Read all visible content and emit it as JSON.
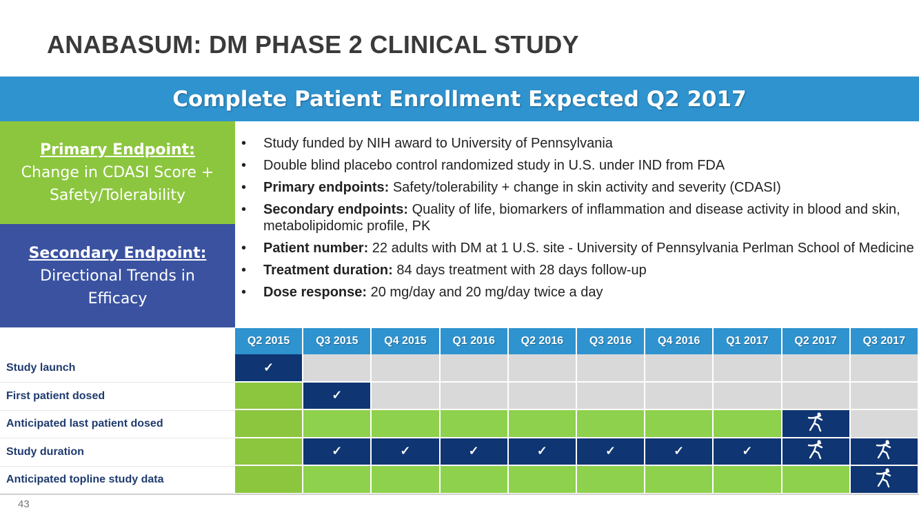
{
  "title": "ANABASUM: DM PHASE 2 CLINICAL STUDY",
  "banner": "Complete Patient Enrollment Expected Q2 2017",
  "primary": {
    "head": "Primary Endpoint:",
    "line1": "Change in CDASI Score +",
    "line2": "Safety/Tolerability"
  },
  "secondary": {
    "head": "Secondary Endpoint:",
    "line1": "Directional Trends in",
    "line2": "Efficacy"
  },
  "bullets": [
    {
      "bold": "",
      "text": "Study funded by NIH award to University of Pennsylvania"
    },
    {
      "bold": "",
      "text": "Double blind placebo control randomized study in U.S. under IND from FDA"
    },
    {
      "bold": "Primary endpoints:",
      "text": " Safety/tolerability + change in skin activity and severity (CDASI)"
    },
    {
      "bold": "Secondary endpoints:",
      "text": " Quality of life, biomarkers of inflammation and disease activity in blood and skin, metabolipidomic profile, PK"
    },
    {
      "bold": "Patient number:",
      "text": " 22 adults with DM at 1 U.S. site - University of Pennsylvania Perlman School of Medicine"
    },
    {
      "bold": "Treatment duration:",
      "text": " 84 days treatment with 28 days follow-up"
    },
    {
      "bold": "Dose response:",
      "text": " 20 mg/day and 20 mg/day twice a day"
    }
  ],
  "timeline": {
    "quarters": [
      "Q2 2015",
      "Q3 2015",
      "Q4 2015",
      "Q1 2016",
      "Q2 2016",
      "Q3 2016",
      "Q4 2016",
      "Q1 2017",
      "Q2 2017",
      "Q3 2017"
    ],
    "rows": [
      {
        "label": "Study launch",
        "cells": [
          "navy-check",
          "gray",
          "gray",
          "gray",
          "gray",
          "gray",
          "gray",
          "gray",
          "gray",
          "gray"
        ]
      },
      {
        "label": "First patient dosed",
        "cells": [
          "lgreen",
          "navy-check",
          "gray",
          "gray",
          "gray",
          "gray",
          "gray",
          "gray",
          "gray",
          "gray"
        ]
      },
      {
        "label": "Anticipated last patient dosed",
        "cells": [
          "lgreen",
          "green",
          "green",
          "green",
          "green",
          "green",
          "green",
          "green",
          "navy-runner",
          "gray"
        ]
      },
      {
        "label": "Study duration",
        "cells": [
          "lgreen",
          "navy-check",
          "navy-check",
          "navy-check",
          "navy-check",
          "navy-check",
          "navy-check",
          "navy-check",
          "navy-runner",
          "navy-runner"
        ]
      },
      {
        "label": "Anticipated topline study data",
        "cells": [
          "lgreen",
          "green",
          "green",
          "green",
          "green",
          "green",
          "green",
          "green",
          "green",
          "navy-runner"
        ]
      }
    ],
    "check_glyph": "✓",
    "runner_icon": "runner-icon"
  },
  "colors": {
    "banner": "#2f93cf",
    "primary_box": "#8cc63e",
    "secondary_box": "#3a52a0",
    "navy": "#0f3572",
    "green": "#8ed14c",
    "gray": "#d9d9d9"
  },
  "page_number": "43"
}
